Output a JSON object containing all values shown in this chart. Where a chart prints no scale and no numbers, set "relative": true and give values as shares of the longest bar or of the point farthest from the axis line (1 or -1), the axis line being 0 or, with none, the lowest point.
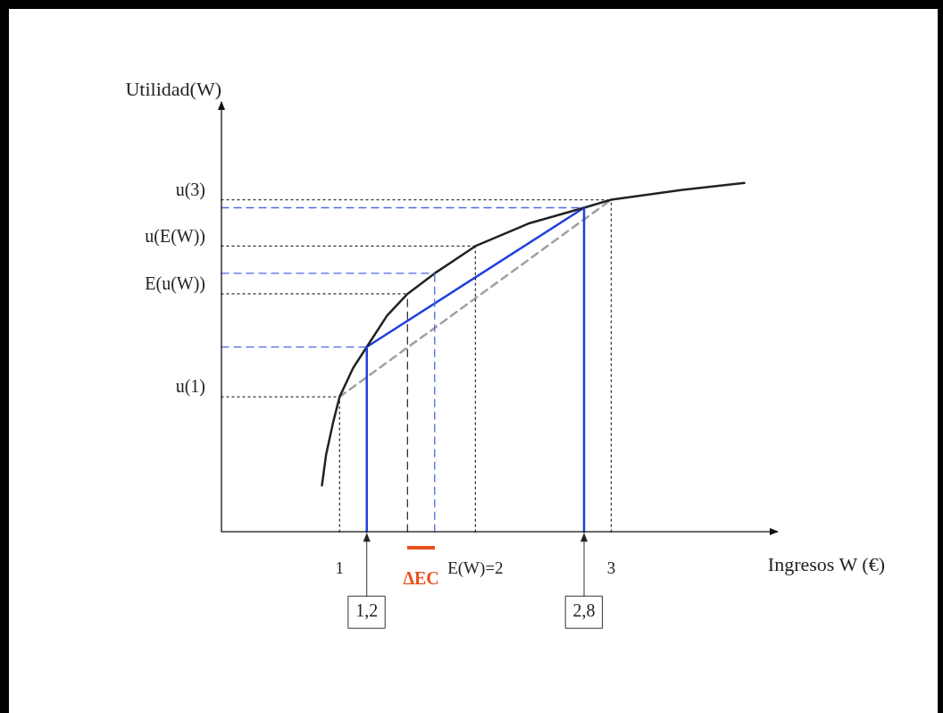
{
  "chart_data": {
    "type": "line",
    "relative": true,
    "xlabel": "Ingresos W (€)",
    "ylabel": "Utilidad(W)",
    "xlim": [
      0.13,
      4.22
    ],
    "xticks": [
      1,
      {
        "value": 2,
        "label": "E(W)=2"
      },
      3
    ],
    "tick_labels": "x",
    "grid": false,
    "legend": false,
    "marker": "none",
    "series": [
      {
        "color": "#222222",
        "x": [
          0.87,
          0.9,
          0.95,
          1,
          1.1,
          1.2,
          1.35,
          1.5,
          1.7,
          2,
          2.4,
          2.8,
          3,
          3.5,
          3.98
        ],
        "values": [
          0.133,
          0.22,
          0.31,
          0.387,
          0.47,
          0.53,
          0.62,
          0.682,
          0.741,
          0.819,
          0.885,
          0.929,
          0.952,
          0.979,
          1
        ],
        "line_style": "solid"
      },
      {
        "color": "#1f3fe0",
        "x": [
          1.2,
          2.8
        ],
        "values": [
          0.53,
          0.929
        ],
        "line_style": "solid"
      },
      {
        "color": "#a0a0a0",
        "x": [
          1,
          3
        ],
        "values": [
          0.387,
          0.952
        ],
        "line_style": "dashed"
      }
    ],
    "ref_lines": [
      {
        "axis": "y",
        "value": 0.952,
        "label": "u(3)",
        "color": "#333333",
        "line_style": "dotted"
      },
      {
        "axis": "y",
        "value": 0.819,
        "label": "u(E(W))",
        "color": "#333333",
        "line_style": "dotted"
      },
      {
        "axis": "y",
        "value": 0.682,
        "label": "E(u(W))",
        "color": "#333333",
        "line_style": "dotted"
      },
      {
        "axis": "y",
        "value": 0.387,
        "label": "u(1)",
        "color": "#333333",
        "line_style": "dotted"
      },
      {
        "axis": "y",
        "value": 0.929,
        "color": "#4a6ae8",
        "line_style": "dashed"
      },
      {
        "axis": "y",
        "value": 0.741,
        "color": "#4a6ae8",
        "line_style": "dashed"
      },
      {
        "axis": "y",
        "value": 0.53,
        "color": "#4a6ae8",
        "line_style": "dashed"
      },
      {
        "axis": "x",
        "value": 1,
        "color": "#333333",
        "line_style": "dotted"
      },
      {
        "axis": "x",
        "value": 1.5,
        "color": "#333333",
        "line_style": "dashed"
      },
      {
        "axis": "x",
        "value": 2,
        "color": "#333333",
        "line_style": "dotted"
      },
      {
        "axis": "x",
        "value": 3,
        "color": "#333333",
        "line_style": "dotted"
      },
      {
        "axis": "x",
        "value": 1.7,
        "color": "#4a6ae8",
        "line_style": "dashed"
      },
      {
        "axis": "x",
        "value": 1.2,
        "label": "1,2",
        "color": "#1f3fe0",
        "line_style": "solid"
      },
      {
        "axis": "x",
        "value": 2.8,
        "label": "2,8",
        "color": "#1f3fe0",
        "line_style": "solid"
      }
    ],
    "annotations": [
      "ΔEC"
    ]
  }
}
